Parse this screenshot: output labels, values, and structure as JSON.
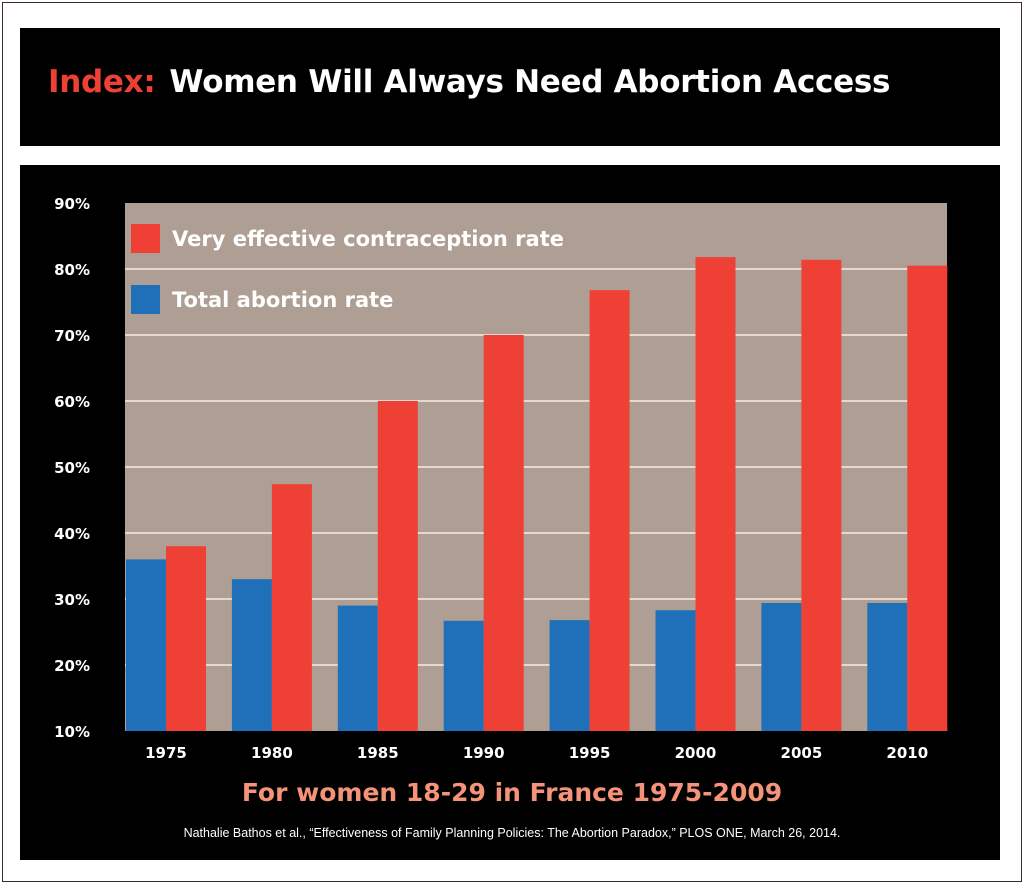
{
  "header": {
    "title_prefix": "Index:",
    "title_main": "Women Will Always Need Abortion Access"
  },
  "chart_data": {
    "type": "bar",
    "title": "Index: Women Will Always Need Abortion Access",
    "subtitle": "For women 18-29 in France 1975-2009",
    "source": "Nathalie Bathos et al., “Effectiveness of Family Planning Policies: The Abortion Paradox,” PLOS ONE, March 26, 2014.",
    "categories": [
      "1975",
      "1980",
      "1985",
      "1990",
      "1995",
      "2000",
      "2005",
      "2010"
    ],
    "series": [
      {
        "name": "Total abortion rate",
        "color": "#1f70b8",
        "values": [
          36,
          33,
          29,
          26.7,
          26.8,
          28.3,
          29.4,
          29.4
        ]
      },
      {
        "name": "Very effective contraception rate",
        "color": "#ef4036",
        "values": [
          38,
          47.4,
          60,
          70,
          76.8,
          81.8,
          81.4,
          80.5
        ]
      }
    ],
    "ylim": [
      10,
      90
    ],
    "yticks": [
      "10%",
      "20%",
      "30%",
      "40%",
      "50%",
      "60%",
      "70%",
      "80%",
      "90%"
    ],
    "grid": true,
    "legend_placement": "top-left",
    "plot_background": "#ae9e93"
  }
}
